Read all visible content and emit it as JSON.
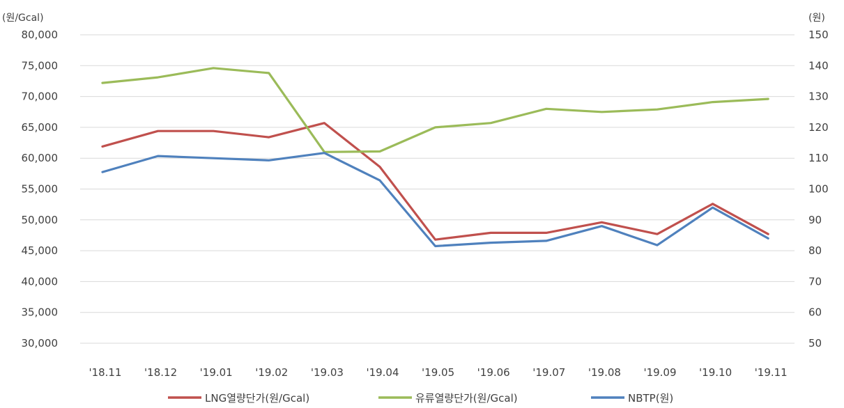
{
  "chart_data": {
    "type": "line",
    "categories": [
      "'18.11",
      "'18.12",
      "'19.01",
      "'19.02",
      "'19.03",
      "'19.04",
      "'19.05",
      "'19.06",
      "'19.07",
      "'19.08",
      "'19.09",
      "'19.10",
      "'19.11"
    ],
    "left_axis": {
      "unit": "(원/Gcal)",
      "ylim": [
        30000,
        80000
      ],
      "ticks": [
        "30,000",
        "35,000",
        "40,000",
        "45,000",
        "50,000",
        "55,000",
        "60,000",
        "65,000",
        "70,000",
        "75,000",
        "80,000"
      ],
      "tick_values": [
        30000,
        35000,
        40000,
        45000,
        50000,
        55000,
        60000,
        65000,
        70000,
        75000,
        80000
      ]
    },
    "right_axis": {
      "unit": "(원)",
      "ylim": [
        50,
        150
      ],
      "ticks": [
        "50",
        "60",
        "70",
        "80",
        "90",
        "100",
        "110",
        "120",
        "130",
        "140",
        "150"
      ],
      "tick_values": [
        50,
        60,
        70,
        80,
        90,
        100,
        110,
        120,
        130,
        140,
        150
      ]
    },
    "series": [
      {
        "name": "LNG열량단가(원/Gcal)",
        "axis": "left",
        "color": "#c0504d",
        "values": [
          61900,
          64400,
          64400,
          63400,
          65700,
          58600,
          46800,
          47900,
          47900,
          49600,
          47700,
          52600,
          47700
        ]
      },
      {
        "name": "유류열량단가(원/Gcal)",
        "axis": "left",
        "color": "#9bbb59",
        "values": [
          72200,
          73100,
          74600,
          73800,
          61000,
          61100,
          65000,
          65700,
          68000,
          67500,
          67900,
          69100,
          69600
        ]
      },
      {
        "name": "NBTP(원)",
        "axis": "right",
        "color": "#4f81bd",
        "values": [
          105.5,
          110.7,
          110.0,
          109.3,
          111.7,
          102.8,
          81.5,
          82.6,
          83.2,
          88.0,
          81.8,
          94.0,
          84.0
        ]
      }
    ],
    "grid": "horizontal",
    "legend_position": "bottom"
  }
}
